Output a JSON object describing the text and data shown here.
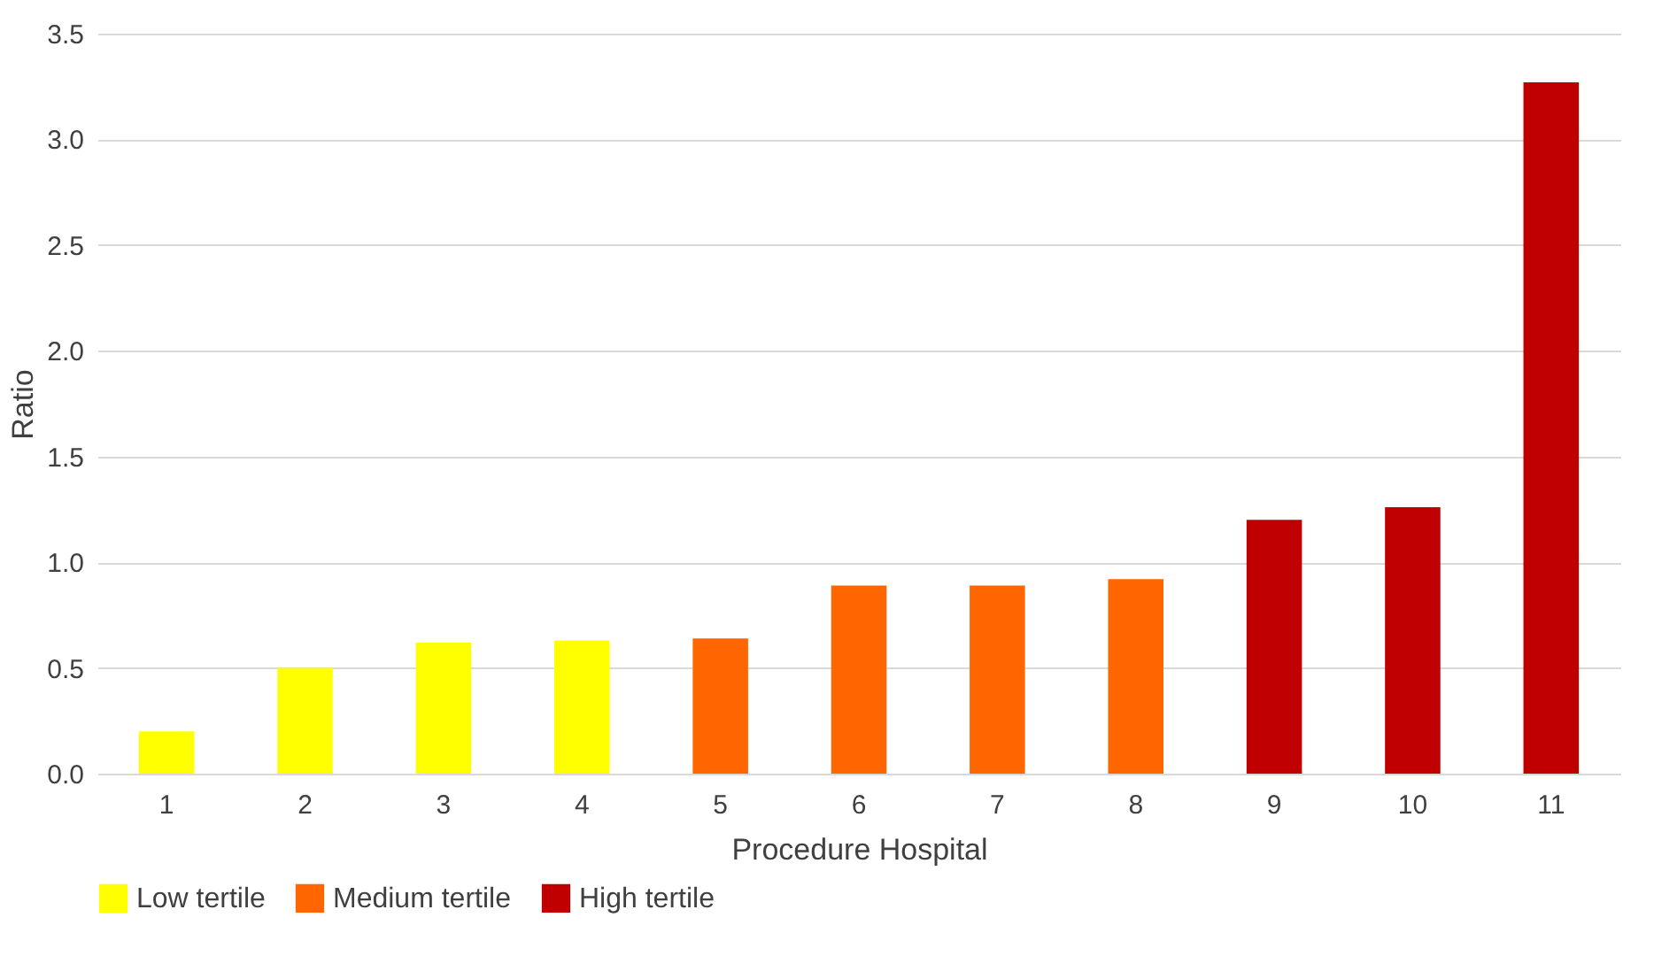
{
  "chart_data": {
    "type": "bar",
    "xlabel": "Procedure Hospital",
    "ylabel": "Ratio",
    "categories": [
      "1",
      "2",
      "3",
      "4",
      "5",
      "6",
      "7",
      "8",
      "9",
      "10",
      "11"
    ],
    "series": [
      {
        "name": "Low tertile",
        "color": "#ffff00",
        "values": [
          0.2,
          0.5,
          0.62,
          0.63,
          null,
          null,
          null,
          null,
          null,
          null,
          null
        ]
      },
      {
        "name": "Medium tertile",
        "color": "#ff6600",
        "values": [
          null,
          null,
          null,
          null,
          0.64,
          0.89,
          0.89,
          0.92,
          null,
          null,
          null
        ]
      },
      {
        "name": "High tertile",
        "color": "#c00000",
        "values": [
          null,
          null,
          null,
          null,
          null,
          null,
          null,
          null,
          1.2,
          1.26,
          3.27
        ]
      }
    ],
    "ylim": [
      0,
      3.5
    ],
    "yticks": [
      {
        "value": 0,
        "label": "0.0"
      },
      0.5,
      {
        "value": 1,
        "label": "1.0"
      },
      1.5,
      {
        "value": 2,
        "label": "2.0"
      },
      2.5,
      {
        "value": 3,
        "label": "3.0"
      },
      3.5
    ],
    "grid": "y",
    "legend": "bottom left"
  }
}
